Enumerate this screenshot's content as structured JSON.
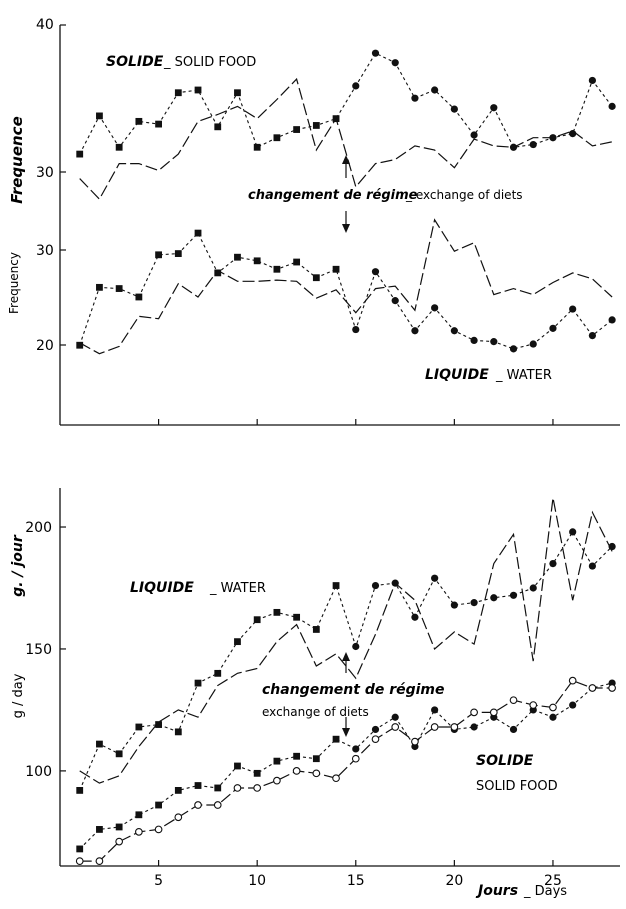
{
  "chart_data": [
    {
      "id": "top",
      "type": "line",
      "ylabel": "Frequence",
      "ylabel2": "Frequency",
      "x": [
        1,
        2,
        3,
        4,
        5,
        6,
        7,
        8,
        9,
        10,
        11,
        12,
        13,
        14,
        15,
        16,
        17,
        18,
        19,
        20,
        21,
        22,
        23,
        24,
        25,
        26,
        27,
        28
      ],
      "xlim": [
        0,
        28.4
      ],
      "panels": [
        {
          "id": "solid",
          "ylim": [
            27.3,
            40.5
          ],
          "yticks": [
            30,
            40
          ],
          "label_main": "SOLIDE",
          "label_sub": "_ SOLID FOOD",
          "series": [
            {
              "id": "dashed_markers",
              "style": "dashed",
              "values": [
                30.3,
                33.1,
                30.8,
                32.7,
                32.5,
                34.8,
                35.0,
                32.3,
                34.8,
                30.8,
                31.5,
                32.1,
                32.4,
                32.9,
                35.3,
                37.7,
                37.0,
                34.4,
                35.0,
                33.6,
                31.7,
                33.7,
                30.8,
                31.0,
                31.5,
                31.8,
                35.7,
                33.8
              ]
            },
            {
              "id": "solid_line",
              "style": "solid",
              "values": [
                28.5,
                27.0,
                29.6,
                29.6,
                29.1,
                30.3,
                32.7,
                33.2,
                33.8,
                32.9,
                34.3,
                35.8,
                30.6,
                32.9,
                27.9,
                29.6,
                29.9,
                30.9,
                30.6,
                29.3,
                31.4,
                30.9,
                30.8,
                31.5,
                31.5,
                32.0,
                30.9,
                31.2
              ]
            }
          ],
          "markers": {
            "dashed_markers": [
              [
                "sq",
                1
              ],
              [
                "sq",
                2
              ],
              [
                "sq",
                3
              ],
              [
                "sq",
                4
              ],
              [
                "sq",
                5
              ],
              [
                "sq",
                6
              ],
              [
                "sq",
                7
              ],
              [
                "sq",
                8
              ],
              [
                "sq",
                9
              ],
              [
                "sq",
                10
              ],
              [
                "sq",
                11
              ],
              [
                "sq",
                12
              ],
              [
                "sq",
                13
              ],
              [
                "sq",
                14
              ],
              [
                "ci",
                15
              ],
              [
                "ci",
                16
              ],
              [
                "ci",
                17
              ],
              [
                "ci",
                18
              ],
              [
                "ci",
                19
              ],
              [
                "ci",
                20
              ],
              [
                "ci",
                21
              ],
              [
                "ci",
                22
              ],
              [
                "ci",
                23
              ],
              [
                "ci",
                24
              ],
              [
                "ci",
                25
              ],
              [
                "ci",
                26
              ],
              [
                "ci",
                27
              ],
              [
                "ci",
                28
              ]
            ]
          }
        },
        {
          "id": "liquid",
          "ylim": [
            16.3,
            33.3
          ],
          "yticks": [
            20,
            30
          ],
          "label_main": "LIQUIDE",
          "label_sub": "_ WATER",
          "series": [
            {
              "id": "dashed_markers",
              "style": "dashed",
              "values": [
                22.5,
                27.3,
                27.2,
                26.5,
                30.0,
                30.1,
                31.8,
                28.5,
                29.8,
                29.5,
                28.8,
                29.4,
                28.1,
                28.8,
                23.8,
                28.6,
                26.2,
                23.7,
                25.6,
                23.7,
                22.9,
                22.8,
                22.2,
                22.6,
                23.9,
                25.5,
                23.3,
                24.6
              ]
            },
            {
              "id": "solid_line",
              "style": "solid",
              "values": [
                22.7,
                21.8,
                22.4,
                24.9,
                24.7,
                27.6,
                26.5,
                28.7,
                27.8,
                27.8,
                27.9,
                27.8,
                26.4,
                27.1,
                25.2,
                27.2,
                27.4,
                25.4,
                32.9,
                30.3,
                31.0,
                26.7,
                27.2,
                26.7,
                27.7,
                28.5,
                28.0,
                26.5
              ]
            }
          ],
          "markers": {
            "dashed_markers": [
              [
                "sq",
                1
              ],
              [
                "sq",
                2
              ],
              [
                "sq",
                3
              ],
              [
                "sq",
                4
              ],
              [
                "sq",
                5
              ],
              [
                "sq",
                6
              ],
              [
                "sq",
                7
              ],
              [
                "sq",
                8
              ],
              [
                "sq",
                9
              ],
              [
                "sq",
                10
              ],
              [
                "sq",
                11
              ],
              [
                "sq",
                12
              ],
              [
                "sq",
                13
              ],
              [
                "sq",
                14
              ],
              [
                "ci",
                15
              ],
              [
                "ci",
                16
              ],
              [
                "ci",
                17
              ],
              [
                "ci",
                18
              ],
              [
                "ci",
                19
              ],
              [
                "ci",
                20
              ],
              [
                "ci",
                21
              ],
              [
                "ci",
                22
              ],
              [
                "ci",
                23
              ],
              [
                "ci",
                24
              ],
              [
                "ci",
                25
              ],
              [
                "ci",
                26
              ],
              [
                "ci",
                27
              ],
              [
                "ci",
                28
              ]
            ]
          }
        }
      ],
      "annotation": {
        "main": "changement de régime",
        "sub": "_ exchange of diets",
        "x": 14.3
      }
    },
    {
      "id": "bottom",
      "type": "line",
      "ylabel": "g. / jour",
      "ylabel2": "g / day",
      "xlabel_main": "Jours",
      "xlabel_sub": "_ Days",
      "x": [
        1,
        2,
        3,
        4,
        5,
        6,
        7,
        8,
        9,
        10,
        11,
        12,
        13,
        14,
        15,
        16,
        17,
        18,
        19,
        20,
        21,
        22,
        23,
        24,
        25,
        26,
        27,
        28
      ],
      "xlim": [
        0,
        28.4
      ],
      "ylim": [
        61,
        216
      ],
      "yticks": [
        100,
        150,
        200
      ],
      "xticks": [
        5,
        10,
        15,
        20,
        25
      ],
      "series": [
        {
          "id": "water_dashed",
          "group": "LIQUIDE",
          "style": "dashed",
          "values": [
            92,
            111,
            107,
            118,
            119,
            116,
            136,
            140,
            153,
            162,
            165,
            163,
            158,
            176,
            151,
            176,
            177,
            163,
            179,
            168,
            169,
            171,
            172,
            175,
            185,
            198,
            184,
            192
          ]
        },
        {
          "id": "water_solid",
          "group": "LIQUIDE",
          "style": "solid",
          "values": [
            100,
            95,
            98,
            110,
            120,
            125,
            122,
            135,
            140,
            142,
            153,
            160,
            143,
            148,
            138,
            156,
            177,
            170,
            150,
            157,
            152,
            185,
            197,
            145,
            212,
            170,
            206,
            190
          ]
        },
        {
          "id": "food_dashed",
          "group": "SOLIDE",
          "style": "dashed",
          "values": [
            68,
            76,
            77,
            82,
            86,
            92,
            94,
            93,
            102,
            99,
            104,
            106,
            105,
            113,
            109,
            117,
            122,
            110,
            125,
            117,
            118,
            122,
            117,
            125,
            122,
            127,
            134,
            136
          ]
        },
        {
          "id": "food_solid",
          "group": "SOLIDE",
          "style": "solid",
          "values": [
            63,
            63,
            71,
            75,
            76,
            81,
            86,
            86,
            93,
            93,
            96,
            100,
            99,
            97,
            105,
            113,
            118,
            112,
            118,
            118,
            124,
            124,
            129,
            127,
            126,
            137,
            134,
            134
          ]
        }
      ],
      "markers": {
        "water_dashed": [
          [
            "sq",
            1
          ],
          [
            "sq",
            2
          ],
          [
            "sq",
            3
          ],
          [
            "sq",
            4
          ],
          [
            "sq",
            5
          ],
          [
            "sq",
            6
          ],
          [
            "sq",
            7
          ],
          [
            "sq",
            8
          ],
          [
            "sq",
            9
          ],
          [
            "sq",
            10
          ],
          [
            "sq",
            11
          ],
          [
            "sq",
            12
          ],
          [
            "sq",
            13
          ],
          [
            "sq",
            14
          ],
          [
            "ci",
            15
          ],
          [
            "ci",
            16
          ],
          [
            "ci",
            17
          ],
          [
            "ci",
            18
          ],
          [
            "ci",
            19
          ],
          [
            "ci",
            20
          ],
          [
            "ci",
            21
          ],
          [
            "ci",
            22
          ],
          [
            "ci",
            23
          ],
          [
            "ci",
            24
          ],
          [
            "ci",
            25
          ],
          [
            "ci",
            26
          ],
          [
            "ci",
            27
          ],
          [
            "ci",
            28
          ]
        ],
        "food_dashed": [
          [
            "sq",
            1
          ],
          [
            "sq",
            2
          ],
          [
            "sq",
            3
          ],
          [
            "sq",
            4
          ],
          [
            "sq",
            5
          ],
          [
            "sq",
            6
          ],
          [
            "sq",
            7
          ],
          [
            "sq",
            8
          ],
          [
            "sq",
            9
          ],
          [
            "sq",
            10
          ],
          [
            "sq",
            11
          ],
          [
            "sq",
            12
          ],
          [
            "sq",
            13
          ],
          [
            "sq",
            14
          ],
          [
            "ci",
            15
          ],
          [
            "ci",
            16
          ],
          [
            "ci",
            17
          ],
          [
            "ci",
            18
          ],
          [
            "ci",
            19
          ],
          [
            "ci",
            20
          ],
          [
            "ci",
            21
          ],
          [
            "ci",
            22
          ],
          [
            "ci",
            23
          ],
          [
            "ci",
            24
          ],
          [
            "ci",
            25
          ],
          [
            "ci",
            26
          ],
          [
            "ci",
            27
          ],
          [
            "ci",
            28
          ]
        ],
        "food_solid": [
          [
            "oc",
            1
          ],
          [
            "oc",
            2
          ],
          [
            "oc",
            3
          ],
          [
            "oc",
            4
          ],
          [
            "oc",
            5
          ],
          [
            "oc",
            6
          ],
          [
            "oc",
            7
          ],
          [
            "oc",
            8
          ],
          [
            "oc",
            9
          ],
          [
            "oc",
            10
          ],
          [
            "oc",
            11
          ],
          [
            "oc",
            12
          ],
          [
            "oc",
            13
          ],
          [
            "oc",
            14
          ],
          [
            "oc",
            15
          ],
          [
            "oc",
            16
          ],
          [
            "oc",
            17
          ],
          [
            "oc",
            18
          ],
          [
            "oc",
            19
          ],
          [
            "oc",
            20
          ],
          [
            "oc",
            21
          ],
          [
            "oc",
            22
          ],
          [
            "oc",
            23
          ],
          [
            "oc",
            24
          ],
          [
            "oc",
            25
          ],
          [
            "oc",
            26
          ],
          [
            "oc",
            27
          ],
          [
            "oc",
            28
          ]
        ]
      },
      "labels": {
        "water_main": "LIQUIDE",
        "water_sub": "_ WATER",
        "food_main": "SOLIDE",
        "food_sub": "SOLID FOOD",
        "annotation_main": "changement de régime",
        "annotation_sub": "exchange of diets"
      },
      "annotation_x": 14.3
    }
  ]
}
